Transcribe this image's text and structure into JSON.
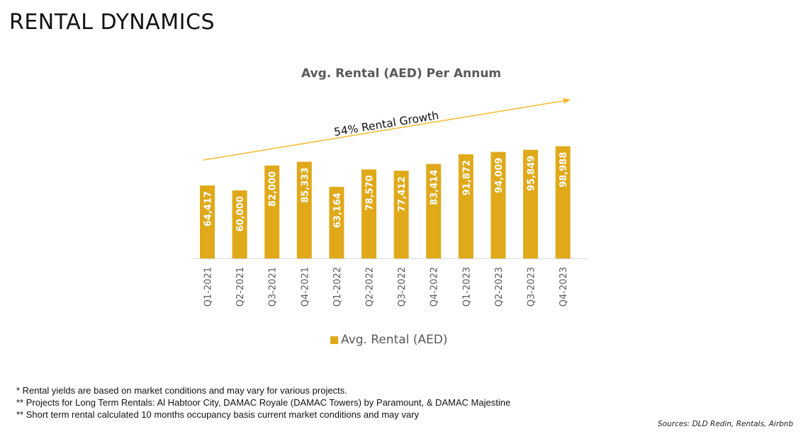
{
  "page": {
    "title": "RENTAL DYNAMICS"
  },
  "chart_data": {
    "type": "bar",
    "title": "Avg. Rental (AED) Per Annum",
    "xlabel": "",
    "ylabel": "",
    "ylim": [
      0,
      100000
    ],
    "grid": false,
    "legend_position": "bottom",
    "categories": [
      "Q1-2021",
      "Q2-2021",
      "Q3-2021",
      "Q4-2021",
      "Q1-2022",
      "Q2-2022",
      "Q3-2022",
      "Q4-2022",
      "Q1-2023",
      "Q2-2023",
      "Q3-2023",
      "Q4-2023"
    ],
    "series": [
      {
        "name": "Avg. Rental (AED)",
        "color": "#E0A91A",
        "values": [
          64417,
          60000,
          82000,
          85333,
          63164,
          78570,
          77412,
          83414,
          91872,
          94009,
          95849,
          98988
        ],
        "labels": [
          "64,417",
          "60,000",
          "82,000",
          "85,333",
          "63,164",
          "78,570",
          "77,412",
          "83,414",
          "91,872",
          "94,009",
          "95,849",
          "98,988"
        ]
      }
    ],
    "annotation": {
      "text": "54% Rental Growth",
      "color": "#F2B92A"
    }
  },
  "footnotes": [
    "* Rental yields are based on market conditions and may vary for various projects.",
    "** Projects for Long Term Rentals: Al Habtoor City, DAMAC Royale (DAMAC Towers) by Paramount, & DAMAC Majestine",
    "** Short term rental calculated 10 months occupancy basis current market conditions and may vary"
  ],
  "source": "Sources: DLD Redin, Rentals, Airbnb"
}
